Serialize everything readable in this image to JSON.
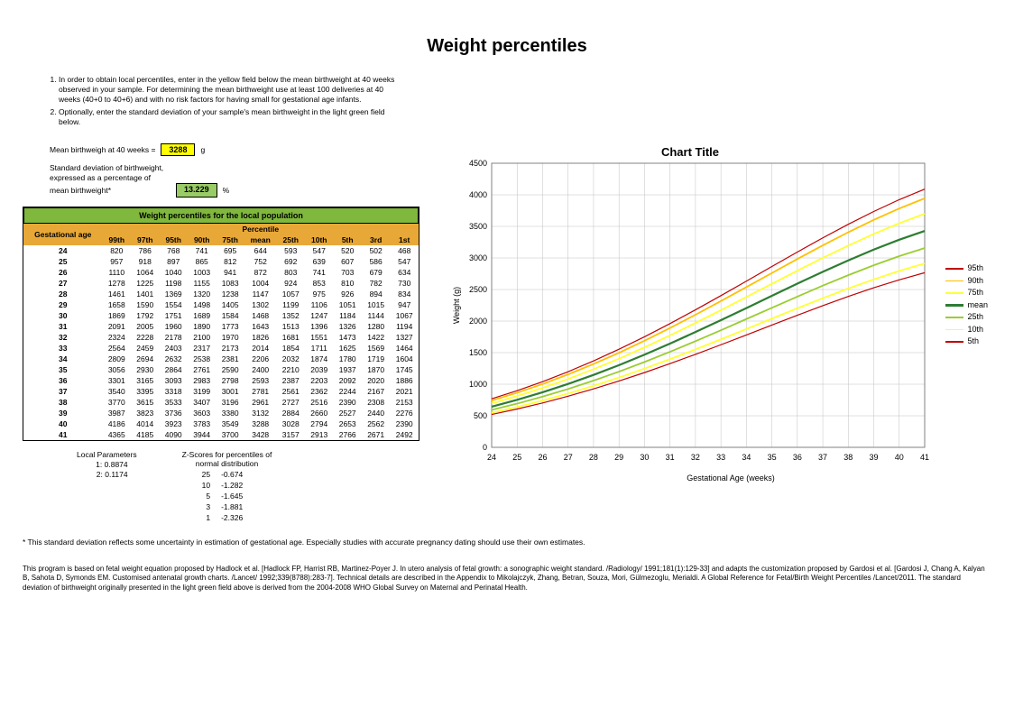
{
  "title": "Weight percentiles",
  "instructions": [
    "In order to obtain local percentiles, enter in the yellow field below the mean birthweight at 40 weeks observed in your sample. For determining the mean birthweight use at least 100 deliveries at 40 weeks (40+0 to 40+6) and with no risk factors for having small for gestational age infants.",
    "Optionally, enter the standard deviation of your sample's mean birthweight in the light green field below."
  ],
  "mean_bw": {
    "label": "Mean birthweigh at 40 weeks  =",
    "value": "3288",
    "unit": "g",
    "field_color": "#ffff00"
  },
  "sd_bw": {
    "label1": "Standard deviation of birthweight,",
    "label2": "expressed as a percentage of",
    "label3": "mean birthweight*",
    "value": "13.229",
    "unit": "%",
    "field_color": "#99cc66"
  },
  "table": {
    "title": "Weight percentiles for the local population",
    "ga_header": "Gestational age",
    "perc_header": "Percentile",
    "columns": [
      "99th",
      "97th",
      "95th",
      "90th",
      "75th",
      "mean",
      "25th",
      "10th",
      "5th",
      "3rd",
      "1st"
    ],
    "ga": [
      "24",
      "25",
      "26",
      "27",
      "28",
      "29",
      "30",
      "31",
      "32",
      "33",
      "34",
      "35",
      "36",
      "37",
      "38",
      "39",
      "40",
      "41"
    ],
    "rows": [
      [
        820,
        786,
        768,
        741,
        695,
        644,
        593,
        547,
        520,
        502,
        468
      ],
      [
        957,
        918,
        897,
        865,
        812,
        752,
        692,
        639,
        607,
        586,
        547
      ],
      [
        1110,
        1064,
        1040,
        1003,
        941,
        872,
        803,
        741,
        703,
        679,
        634
      ],
      [
        1278,
        1225,
        1198,
        1155,
        1083,
        1004,
        924,
        853,
        810,
        782,
        730
      ],
      [
        1461,
        1401,
        1369,
        1320,
        1238,
        1147,
        1057,
        975,
        926,
        894,
        834
      ],
      [
        1658,
        1590,
        1554,
        1498,
        1405,
        1302,
        1199,
        1106,
        1051,
        1015,
        947
      ],
      [
        1869,
        1792,
        1751,
        1689,
        1584,
        1468,
        1352,
        1247,
        1184,
        1144,
        1067
      ],
      [
        2091,
        2005,
        1960,
        1890,
        1773,
        1643,
        1513,
        1396,
        1326,
        1280,
        1194
      ],
      [
        2324,
        2228,
        2178,
        2100,
        1970,
        1826,
        1681,
        1551,
        1473,
        1422,
        1327
      ],
      [
        2564,
        2459,
        2403,
        2317,
        2173,
        2014,
        1854,
        1711,
        1625,
        1569,
        1464
      ],
      [
        2809,
        2694,
        2632,
        2538,
        2381,
        2206,
        2032,
        1874,
        1780,
        1719,
        1604
      ],
      [
        3056,
        2930,
        2864,
        2761,
        2590,
        2400,
        2210,
        2039,
        1937,
        1870,
        1745
      ],
      [
        3301,
        3165,
        3093,
        2983,
        2798,
        2593,
        2387,
        2203,
        2092,
        2020,
        1886
      ],
      [
        3540,
        3395,
        3318,
        3199,
        3001,
        2781,
        2561,
        2362,
        2244,
        2167,
        2021
      ],
      [
        3770,
        3615,
        3533,
        3407,
        3196,
        2961,
        2727,
        2516,
        2390,
        2308,
        2153
      ],
      [
        3987,
        3823,
        3736,
        3603,
        3380,
        3132,
        2884,
        2660,
        2527,
        2440,
        2276
      ],
      [
        4186,
        4014,
        3923,
        3783,
        3549,
        3288,
        3028,
        2794,
        2653,
        2562,
        2390
      ],
      [
        4365,
        4185,
        4090,
        3944,
        3700,
        3428,
        3157,
        2913,
        2766,
        2671,
        2492
      ]
    ],
    "header_green": "#7fb83c",
    "header_gold": "#e8a838",
    "ga_col_color": "#ff9933"
  },
  "local_params": {
    "title": "Local Parameters",
    "p1_label": "1:",
    "p1_val": "0.8874",
    "p2_label": "2:",
    "p2_val": "0.1174"
  },
  "zscores": {
    "title": "Z-Scores for percentiles of",
    "subtitle": "normal distribution",
    "rows": [
      {
        "p": "25",
        "z": "-0.674"
      },
      {
        "p": "10",
        "z": "-1.282"
      },
      {
        "p": "5",
        "z": "-1.645"
      },
      {
        "p": "3",
        "z": "-1.881"
      },
      {
        "p": "1",
        "z": "-2.326"
      }
    ]
  },
  "footnote": "* This standard deviation reflects some uncertainty in estimation of gestational age. Especially studies with accurate pregnancy dating should use their own estimates.",
  "citation": "This program is based on fetal weight equation proposed by Hadlock et al. [Hadlock FP, Harrist RB, Martinez-Poyer J. In utero analysis of fetal growth: a sonographic weight standard. /Radiology/ 1991;181(1):129-33] and adapts the customization proposed by Gardosi et al. [Gardosi J, Chang A, Kalyan B, Sahota D, Symonds EM. Customised antenatal growth charts. /Lancet/ 1992;339(8788):283-7].  Technical details are described in the Appendix to Mikolajczyk, Zhang, Betran, Souza, Mori, Gülmezoglu, Merialdi. A Global Reference for Fetal/Birth Weight Percentiles /Lancet/2011. The standard deviation of birthweight originally presented in the light green field above is derived from the 2004-2008 WHO Global Survey on Maternal and Perinatal Health.",
  "chart": {
    "title": "Chart Title",
    "x_label": "Gestational Age (weeks)",
    "y_label": "Weight (g)",
    "xlim": [
      24,
      41
    ],
    "ylim": [
      0,
      4500
    ],
    "xtick_step": 1,
    "ytick_step": 500,
    "grid_color": "#c0c0c0",
    "background_color": "#ffffff",
    "plot_border": "#808080",
    "series": [
      {
        "name": "95th",
        "color": "#c00000",
        "width": 1.2,
        "col_idx": 2
      },
      {
        "name": "90th",
        "color": "#ffc000",
        "width": 1.8,
        "col_idx": 3
      },
      {
        "name": "75th",
        "color": "#ffff33",
        "width": 1.8,
        "col_idx": 4
      },
      {
        "name": "mean",
        "color": "#2e7d32",
        "width": 2.2,
        "col_idx": 5
      },
      {
        "name": "25th",
        "color": "#9acd32",
        "width": 1.8,
        "col_idx": 6
      },
      {
        "name": "10th",
        "color": "#ffff33",
        "width": 1.8,
        "col_idx": 7
      },
      {
        "name": "5th",
        "color": "#c00000",
        "width": 1.2,
        "col_idx": 8
      }
    ],
    "label_fontsize": 9,
    "title_fontsize": 13
  }
}
